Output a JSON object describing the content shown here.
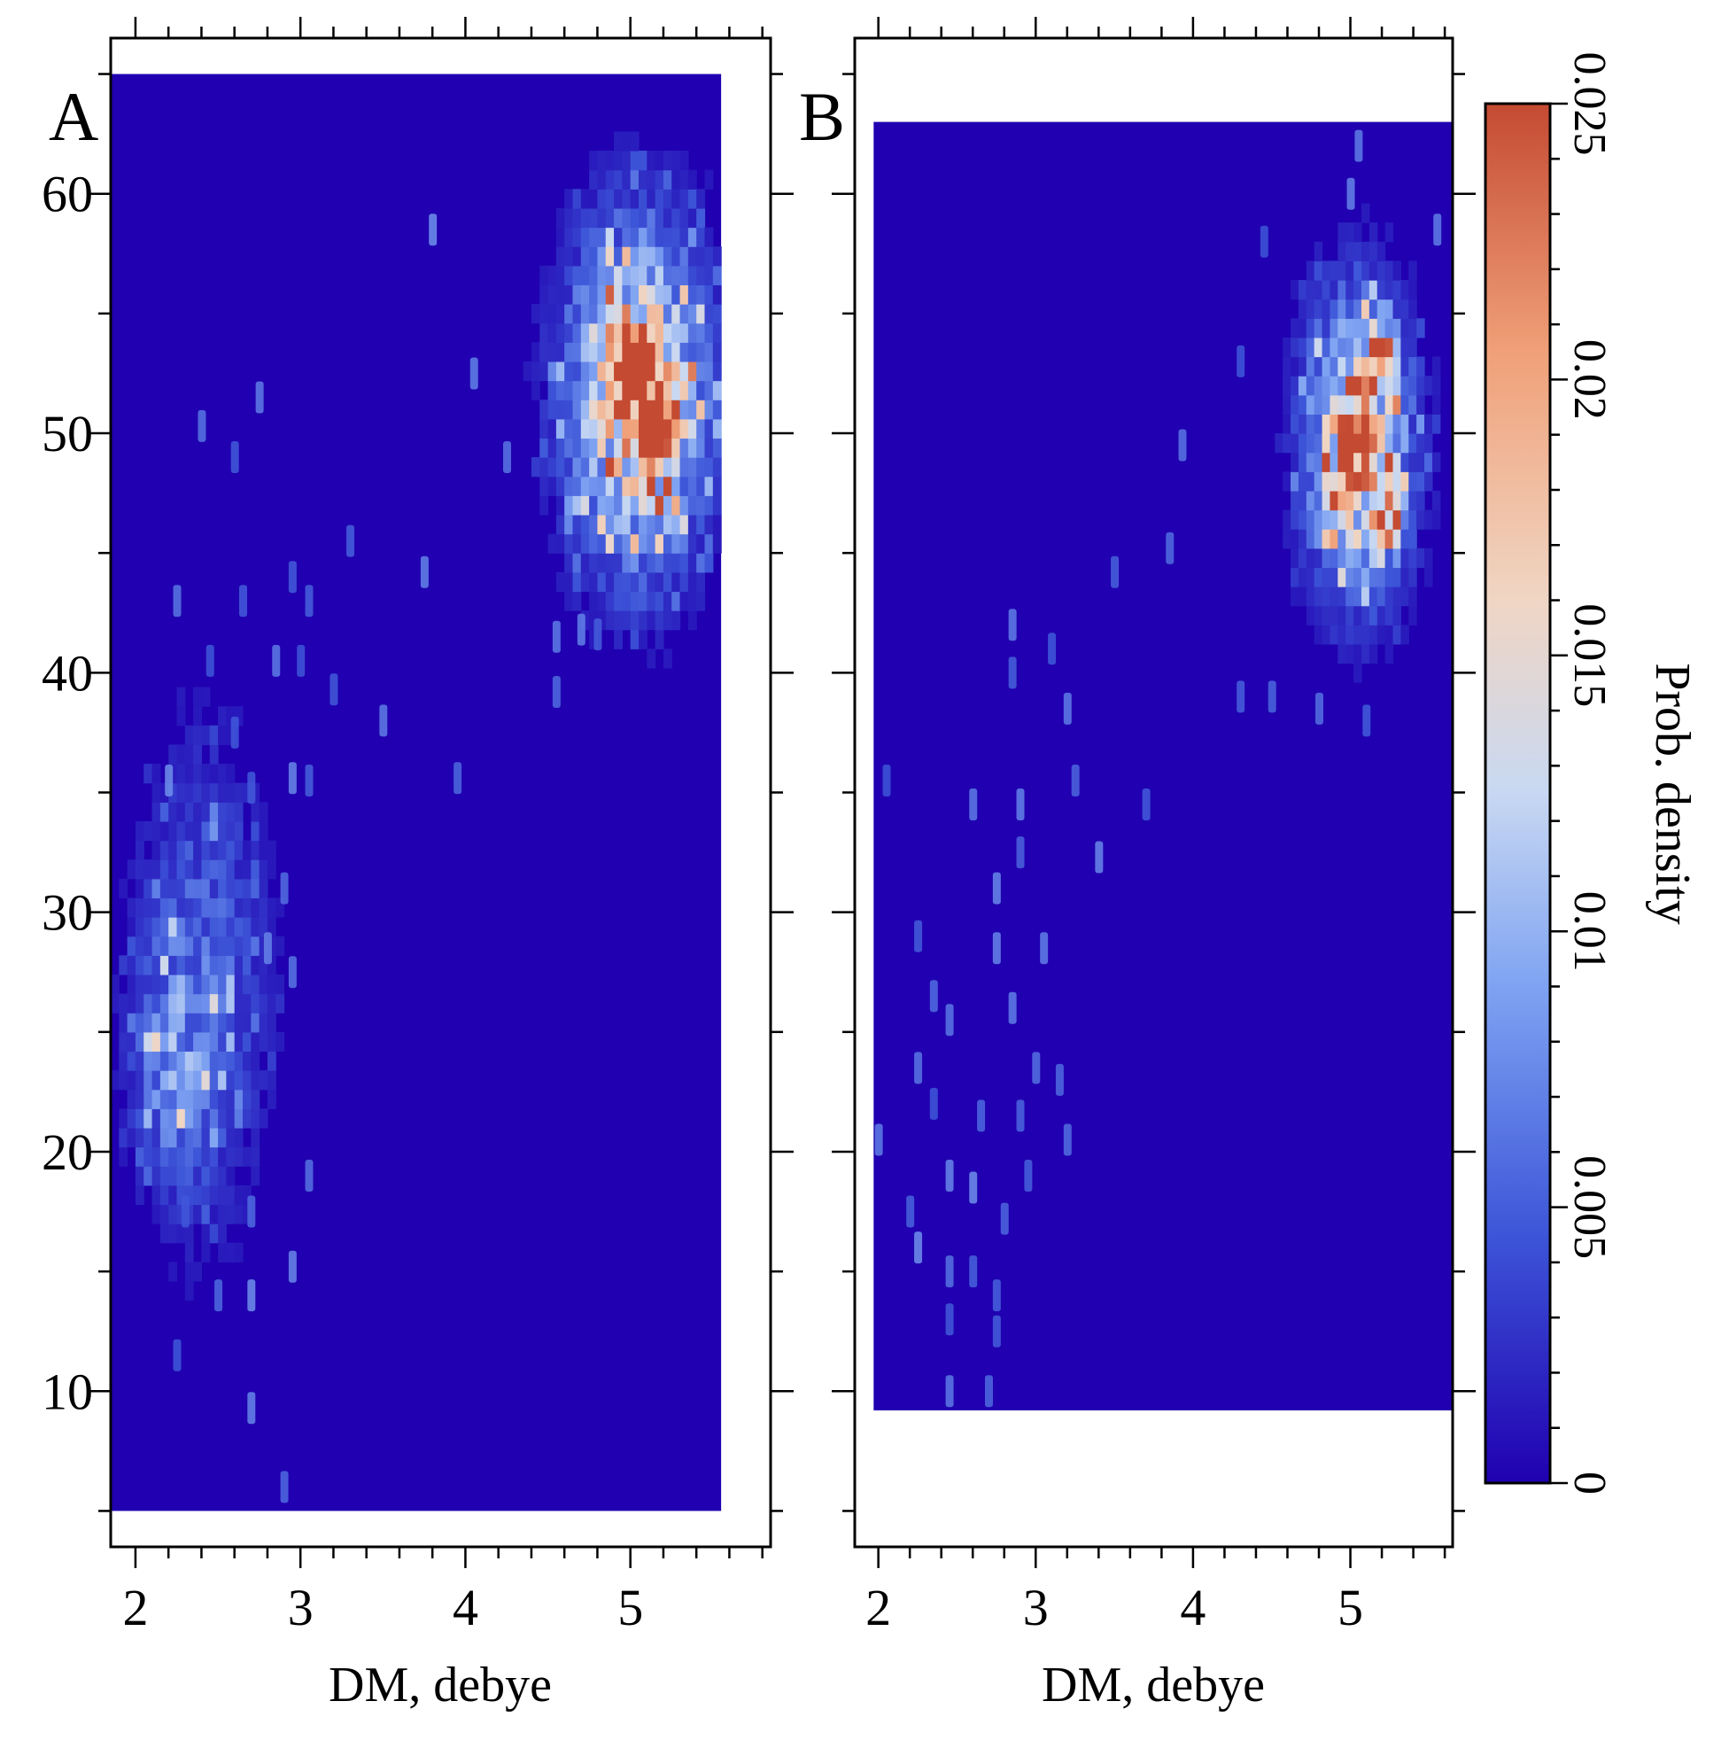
{
  "figure": {
    "colors": {
      "background": "#2000b0",
      "frame": "#000000",
      "colormap": [
        "#2000b0",
        "#3d55d8",
        "#7fa3f2",
        "#c8d8f2",
        "#f0d6c4",
        "#f0a078",
        "#c44a32"
      ]
    }
  },
  "chart_data": [
    {
      "type": "heatmap",
      "panel_label": "A",
      "xlabel": "DM, debye",
      "ylabel": "",
      "xlim": [
        1.85,
        5.85
      ],
      "ylim": [
        3.5,
        66.5
      ],
      "data_x_range": [
        1.85,
        5.55
      ],
      "data_y_range": [
        5,
        65
      ],
      "xticks": [
        "2",
        "3",
        "4",
        "5"
      ],
      "yticks": [
        "10",
        "20",
        "30",
        "40",
        "50",
        "60"
      ],
      "x_minor_step": 0.2,
      "y_minor_step": 5,
      "clusters": [
        {
          "x": 5.05,
          "y": 51.5,
          "sx": 0.28,
          "sy": 4.6,
          "peak": 0.021,
          "note": "main high-density cluster"
        },
        {
          "x": 5.0,
          "y": 52.8,
          "sx": 0.08,
          "sy": 1.2,
          "peak": 0.024,
          "note": "local maximum"
        },
        {
          "x": 5.15,
          "y": 50.5,
          "sx": 0.07,
          "sy": 1.0,
          "peak": 0.02
        },
        {
          "x": 2.4,
          "y": 27.0,
          "sx": 0.26,
          "sy": 6.5,
          "peak": 0.0065,
          "note": "diffuse low-DM cluster"
        },
        {
          "x": 2.2,
          "y": 23.5,
          "sx": 0.15,
          "sy": 3.0,
          "peak": 0.005
        }
      ],
      "scatter_spots": [
        [
          3.8,
          58.5
        ],
        [
          4.05,
          52.5
        ],
        [
          2.75,
          51.5
        ],
        [
          2.4,
          50.3
        ],
        [
          2.6,
          49
        ],
        [
          4.25,
          49
        ],
        [
          3.3,
          45.5
        ],
        [
          3.75,
          44.2
        ],
        [
          2.95,
          44
        ],
        [
          2.25,
          43
        ],
        [
          2.65,
          43
        ],
        [
          3.05,
          43
        ],
        [
          2.45,
          40.5
        ],
        [
          2.85,
          40.5
        ],
        [
          3.0,
          40.5
        ],
        [
          3.2,
          39.3
        ],
        [
          3.5,
          38
        ],
        [
          2.6,
          37.5
        ],
        [
          3.95,
          35.6
        ],
        [
          2.95,
          35.6
        ],
        [
          3.05,
          35.5
        ],
        [
          2.7,
          35.2
        ],
        [
          2.2,
          35.5
        ],
        [
          2.9,
          31
        ],
        [
          2.8,
          28.5
        ],
        [
          2.95,
          27.5
        ],
        [
          3.05,
          19
        ],
        [
          2.3,
          17.5
        ],
        [
          2.7,
          17.5
        ],
        [
          2.95,
          15.2
        ],
        [
          2.5,
          14
        ],
        [
          2.7,
          14
        ],
        [
          2.25,
          11.5
        ],
        [
          2.7,
          9.3
        ],
        [
          2.9,
          6
        ],
        [
          4.55,
          39.2
        ],
        [
          4.55,
          41.5
        ],
        [
          4.7,
          41.8
        ],
        [
          4.8,
          41.6
        ]
      ]
    },
    {
      "type": "heatmap",
      "panel_label": "B",
      "xlabel": "DM, debye",
      "ylabel": "",
      "xlim": [
        1.85,
        5.65
      ],
      "ylim": [
        3.5,
        66.5
      ],
      "data_x_range": [
        1.97,
        5.65
      ],
      "data_y_range": [
        9.2,
        63
      ],
      "xticks": [
        "2",
        "3",
        "4",
        "5"
      ],
      "yticks": [],
      "x_minor_step": 0.2,
      "y_minor_step": 5,
      "clusters": [
        {
          "x": 5.05,
          "y": 49.5,
          "sx": 0.22,
          "sy": 4.0,
          "peak": 0.02,
          "note": "main high-density cluster"
        },
        {
          "x": 5.02,
          "y": 49.6,
          "sx": 0.06,
          "sy": 0.9,
          "peak": 0.025,
          "note": "global maximum"
        },
        {
          "x": 5.2,
          "y": 53.5,
          "sx": 0.06,
          "sy": 1.0,
          "peak": 0.019
        },
        {
          "x": 5.22,
          "y": 46.5,
          "sx": 0.06,
          "sy": 0.9,
          "peak": 0.019
        }
      ],
      "scatter_spots": [
        [
          5.05,
          62
        ],
        [
          5.0,
          60
        ],
        [
          4.45,
          58
        ],
        [
          5.55,
          58.5
        ],
        [
          4.3,
          53
        ],
        [
          3.93,
          49.5
        ],
        [
          3.85,
          45.2
        ],
        [
          3.5,
          44.2
        ],
        [
          2.85,
          42
        ],
        [
          2.85,
          40
        ],
        [
          3.1,
          41
        ],
        [
          3.2,
          38.5
        ],
        [
          3.25,
          35.5
        ],
        [
          3.7,
          34.5
        ],
        [
          2.05,
          35.5
        ],
        [
          2.6,
          34.5
        ],
        [
          2.9,
          34.5
        ],
        [
          2.9,
          32.5
        ],
        [
          3.4,
          32.3
        ],
        [
          2.75,
          31
        ],
        [
          2.75,
          28.5
        ],
        [
          3.05,
          28.5
        ],
        [
          2.25,
          29
        ],
        [
          2.35,
          26.5
        ],
        [
          2.45,
          25.5
        ],
        [
          2.85,
          26
        ],
        [
          3.0,
          23.5
        ],
        [
          3.15,
          23
        ],
        [
          2.25,
          23.5
        ],
        [
          2.35,
          22
        ],
        [
          2.65,
          21.5
        ],
        [
          2.9,
          21.5
        ],
        [
          3.2,
          20.5
        ],
        [
          2.0,
          20.5
        ],
        [
          2.45,
          19
        ],
        [
          2.95,
          19
        ],
        [
          2.2,
          17.5
        ],
        [
          2.6,
          18.5
        ],
        [
          2.8,
          17.2
        ],
        [
          2.25,
          16
        ],
        [
          2.45,
          15
        ],
        [
          2.6,
          15
        ],
        [
          2.75,
          14
        ],
        [
          2.45,
          13
        ],
        [
          2.75,
          12.5
        ],
        [
          2.45,
          10
        ],
        [
          2.7,
          10
        ],
        [
          4.3,
          39
        ],
        [
          4.5,
          39
        ],
        [
          4.8,
          38.5
        ],
        [
          5.1,
          38
        ]
      ]
    }
  ],
  "colorbar": {
    "label": "Prob. density",
    "range": [
      0,
      0.025
    ],
    "ticks": [
      "0",
      "0.005",
      "0.01",
      "0.015",
      "0.02",
      "0.025"
    ],
    "minor_step": 0.001
  }
}
